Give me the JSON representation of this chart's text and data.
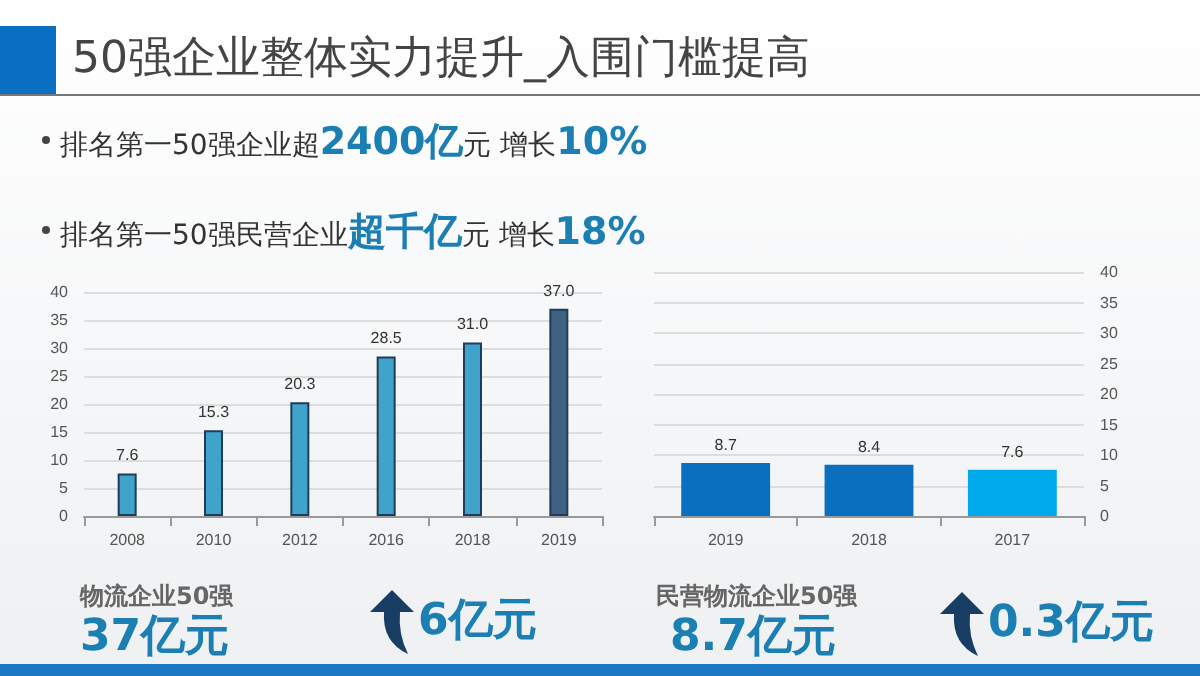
{
  "chart_data": [
    {
      "type": "bar",
      "title": "50强企业整体实力提升_入围门槛提高",
      "annotations": [
        "排名第一50强企业超2400亿元 增长10%",
        "排名第一50强民营企业超千亿元 增长18%",
        "物流企业50强",
        "37亿元",
        "6亿元"
      ],
      "categories": [
        "2008",
        "2010",
        "2012",
        "2016",
        "2018",
        "2019"
      ],
      "series": [
        {
          "values": [
            7.6,
            15.3,
            20.3,
            28.5,
            31.0,
            37.0
          ],
          "colors": [
            "#40a3cc",
            "#40a3cc",
            "#40a3cc",
            "#40a3cc",
            "#40a3cc",
            "#3f6283"
          ],
          "value_labels": [
            "7.6",
            "15.3",
            "20.3",
            "28.5",
            "31.0",
            "37.0"
          ]
        }
      ],
      "ylim": [
        0,
        40
      ],
      "yticks": [
        0,
        5,
        10,
        15,
        20,
        25,
        30,
        35,
        40
      ],
      "grid": "y"
    },
    {
      "type": "bar",
      "annotations": [
        "民营物流企业50强",
        "8.7亿元",
        "0.3亿元"
      ],
      "categories": [
        "2019",
        "2018",
        "2017"
      ],
      "series": [
        {
          "axis": "y2",
          "values": [
            8.7,
            8.4,
            7.6
          ],
          "colors": [
            "#0b6fc0",
            "#0b6fc0",
            "#00aaea"
          ],
          "value_labels": [
            "8.7",
            "8.4",
            "7.6"
          ]
        }
      ],
      "y2lim": [
        0,
        40
      ],
      "y2ticks": [
        0,
        5,
        10,
        15,
        20,
        25,
        30,
        35,
        40
      ],
      "grid": "y"
    }
  ]
}
